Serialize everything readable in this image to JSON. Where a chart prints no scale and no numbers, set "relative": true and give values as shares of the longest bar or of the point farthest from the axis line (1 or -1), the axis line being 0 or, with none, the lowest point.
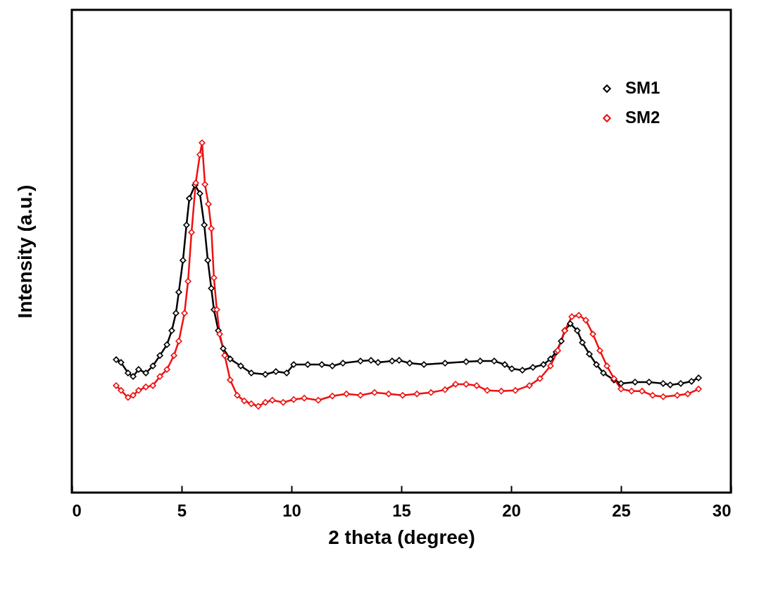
{
  "chart_data": {
    "type": "line",
    "xlabel": "2 theta (degree)",
    "ylabel": "Intensity (a.u.)",
    "relative": true,
    "marker": "diamond",
    "legend": "top right",
    "grid": false,
    "xlim": [
      0,
      30
    ],
    "xticks": [
      0,
      5,
      10,
      15,
      20,
      25,
      30
    ],
    "series": [
      {
        "name": "SM1",
        "color": "#000000",
        "x": [
          2.02,
          2.24,
          2.56,
          2.79,
          3.04,
          3.37,
          3.69,
          4.01,
          4.33,
          4.55,
          4.74,
          4.87,
          5.06,
          5.22,
          5.35,
          5.61,
          5.83,
          6.03,
          6.19,
          6.35,
          6.47,
          6.67,
          6.89,
          7.21,
          7.69,
          8.17,
          8.81,
          9.29,
          9.78,
          10.1,
          10.74,
          11.38,
          11.86,
          12.34,
          13.14,
          13.62,
          13.94,
          14.58,
          14.9,
          15.38,
          16.03,
          16.99,
          17.95,
          18.59,
          19.23,
          19.71,
          20.03,
          20.51,
          20.99,
          21.47,
          21.79,
          22.05,
          22.28,
          22.44,
          22.69,
          23.01,
          23.24,
          23.56,
          23.88,
          24.2,
          24.68,
          25,
          25.64,
          26.28,
          26.92,
          27.24,
          27.72,
          28.21,
          28.53
        ],
        "values": [
          0.38,
          0.372,
          0.342,
          0.332,
          0.352,
          0.342,
          0.362,
          0.392,
          0.423,
          0.463,
          0.513,
          0.573,
          0.664,
          0.765,
          0.841,
          0.879,
          0.855,
          0.765,
          0.664,
          0.584,
          0.523,
          0.463,
          0.412,
          0.382,
          0.362,
          0.342,
          0.338,
          0.346,
          0.342,
          0.366,
          0.366,
          0.366,
          0.362,
          0.37,
          0.376,
          0.378,
          0.372,
          0.376,
          0.378,
          0.37,
          0.366,
          0.37,
          0.374,
          0.376,
          0.376,
          0.366,
          0.354,
          0.35,
          0.358,
          0.366,
          0.382,
          0.402,
          0.433,
          0.463,
          0.483,
          0.463,
          0.429,
          0.396,
          0.366,
          0.342,
          0.322,
          0.312,
          0.316,
          0.316,
          0.312,
          0.308,
          0.312,
          0.318,
          0.328
        ]
      },
      {
        "name": "SM2",
        "color": "#ee1111",
        "x": [
          2.02,
          2.24,
          2.56,
          2.79,
          3.04,
          3.37,
          3.69,
          4.01,
          4.33,
          4.65,
          4.87,
          5.13,
          5.29,
          5.45,
          5.64,
          5.83,
          5.93,
          6.06,
          6.22,
          6.35,
          6.47,
          6.6,
          6.73,
          6.96,
          7.21,
          7.53,
          7.85,
          8.17,
          8.49,
          8.81,
          9.13,
          9.62,
          10.1,
          10.58,
          11.22,
          11.86,
          12.5,
          13.14,
          13.78,
          14.42,
          15.06,
          15.71,
          16.35,
          16.99,
          17.47,
          17.95,
          18.43,
          18.91,
          19.55,
          20.19,
          20.83,
          21.31,
          21.79,
          22.12,
          22.44,
          22.76,
          23.08,
          23.4,
          23.72,
          24.04,
          24.36,
          24.68,
          25,
          25.48,
          25.96,
          26.44,
          26.92,
          27.56,
          28.04,
          28.53
        ],
        "values": [
          0.306,
          0.292,
          0.272,
          0.278,
          0.292,
          0.302,
          0.306,
          0.332,
          0.352,
          0.392,
          0.433,
          0.513,
          0.604,
          0.744,
          0.885,
          0.966,
          1,
          0.881,
          0.825,
          0.755,
          0.614,
          0.523,
          0.453,
          0.392,
          0.322,
          0.278,
          0.262,
          0.254,
          0.247,
          0.258,
          0.264,
          0.258,
          0.266,
          0.27,
          0.264,
          0.276,
          0.282,
          0.278,
          0.286,
          0.282,
          0.278,
          0.282,
          0.286,
          0.294,
          0.31,
          0.31,
          0.306,
          0.292,
          0.29,
          0.292,
          0.306,
          0.326,
          0.362,
          0.406,
          0.463,
          0.503,
          0.507,
          0.493,
          0.453,
          0.406,
          0.362,
          0.326,
          0.296,
          0.29,
          0.29,
          0.278,
          0.274,
          0.278,
          0.282,
          0.296
        ]
      }
    ]
  }
}
